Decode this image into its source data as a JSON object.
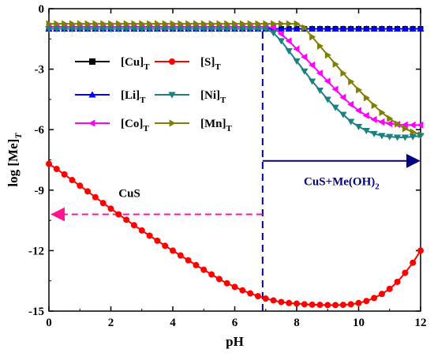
{
  "chart_data": {
    "type": "line",
    "xlabel": "pH",
    "ylabel": "log [Me]",
    "ylabel_sub": "T",
    "xlim": [
      0,
      12
    ],
    "ylim": [
      -15,
      0
    ],
    "xticks": [
      "0",
      "2",
      "4",
      "6",
      "8",
      "10",
      "12"
    ],
    "yticks": [
      "0",
      "-3",
      "-6",
      "-9",
      "-12",
      "-15"
    ],
    "grid": false,
    "legend_position": "upper-left",
    "legend_columns": 2,
    "x": [
      0,
      0.25,
      0.5,
      0.75,
      1,
      1.25,
      1.5,
      1.75,
      2,
      2.25,
      2.5,
      2.75,
      3,
      3.25,
      3.5,
      3.75,
      4,
      4.25,
      4.5,
      4.75,
      5,
      5.25,
      5.5,
      5.75,
      6,
      6.25,
      6.5,
      6.75,
      7,
      7.25,
      7.5,
      7.75,
      8,
      8.25,
      8.5,
      8.75,
      9,
      9.25,
      9.5,
      9.75,
      10,
      10.25,
      10.5,
      10.75,
      11,
      11.25,
      11.5,
      11.75,
      12
    ],
    "series": [
      {
        "name": "[Cu]",
        "sub": "T",
        "color": "#000000",
        "marker": "square",
        "values": [
          -1,
          -1,
          -1,
          -1,
          -1,
          -1,
          -1,
          -1,
          -1,
          -1,
          -1,
          -1,
          -1,
          -1,
          -1,
          -1,
          -1,
          -1,
          -1,
          -1,
          -1,
          -1,
          -1,
          -1,
          -1,
          -1,
          -1,
          -1,
          -1,
          -1,
          -1,
          -1,
          -1,
          -1,
          -1,
          -1,
          -1,
          -1,
          -1,
          -1,
          -1,
          -1,
          -1,
          -1,
          -1,
          -1,
          -1,
          -1,
          -1
        ]
      },
      {
        "name": "[S]",
        "sub": "T",
        "color": "#ff0000",
        "marker": "circle",
        "values": [
          -7.7,
          -7.95,
          -8.22,
          -8.5,
          -8.78,
          -9.06,
          -9.35,
          -9.64,
          -9.92,
          -10.2,
          -10.47,
          -10.74,
          -11.0,
          -11.26,
          -11.51,
          -11.76,
          -12.0,
          -12.24,
          -12.48,
          -12.72,
          -12.95,
          -13.18,
          -13.41,
          -13.62,
          -13.8,
          -13.97,
          -14.12,
          -14.26,
          -14.38,
          -14.47,
          -14.55,
          -14.6,
          -14.63,
          -14.66,
          -14.68,
          -14.69,
          -14.7,
          -14.7,
          -14.69,
          -14.66,
          -14.6,
          -14.5,
          -14.35,
          -14.15,
          -13.9,
          -13.55,
          -13.1,
          -12.6,
          -12.0
        ]
      },
      {
        "name": "[Li]",
        "sub": "T",
        "color": "#0000ff",
        "marker": "triangle-up",
        "values": [
          -1,
          -1,
          -1,
          -1,
          -1,
          -1,
          -1,
          -1,
          -1,
          -1,
          -1,
          -1,
          -1,
          -1,
          -1,
          -1,
          -1,
          -1,
          -1,
          -1,
          -1,
          -1,
          -1,
          -1,
          -1,
          -1,
          -1,
          -1,
          -1,
          -1,
          -1,
          -1,
          -1,
          -1,
          -1,
          -1,
          -1,
          -1,
          -1,
          -1,
          -1,
          -1,
          -1,
          -1,
          -1,
          -1,
          -1,
          -1,
          -1
        ]
      },
      {
        "name": "[Ni]",
        "sub": "T",
        "color": "#1a8080",
        "marker": "triangle-down",
        "values": [
          -1,
          -1,
          -1,
          -1,
          -1,
          -1,
          -1,
          -1,
          -1,
          -1,
          -1,
          -1,
          -1,
          -1,
          -1,
          -1,
          -1,
          -1,
          -1,
          -1,
          -1,
          -1,
          -1,
          -1,
          -1,
          -1,
          -1,
          -1,
          -1,
          -1.2,
          -1.6,
          -2.1,
          -2.6,
          -3.1,
          -3.6,
          -4.05,
          -4.5,
          -4.9,
          -5.25,
          -5.6,
          -5.85,
          -6.05,
          -6.2,
          -6.3,
          -6.35,
          -6.38,
          -6.38,
          -6.35,
          -6.3
        ]
      },
      {
        "name": "[Co]",
        "sub": "T",
        "color": "#ff00ff",
        "marker": "triangle-left",
        "values": [
          -0.9,
          -0.9,
          -0.9,
          -0.9,
          -0.9,
          -0.9,
          -0.9,
          -0.9,
          -0.9,
          -0.9,
          -0.9,
          -0.9,
          -0.9,
          -0.9,
          -0.9,
          -0.9,
          -0.9,
          -0.9,
          -0.9,
          -0.9,
          -0.9,
          -0.9,
          -0.9,
          -0.9,
          -0.9,
          -0.9,
          -0.9,
          -0.9,
          -0.9,
          -0.95,
          -1.25,
          -1.6,
          -2.0,
          -2.4,
          -2.8,
          -3.2,
          -3.6,
          -4.0,
          -4.4,
          -4.75,
          -5.05,
          -5.3,
          -5.5,
          -5.62,
          -5.7,
          -5.74,
          -5.76,
          -5.77,
          -5.77
        ]
      },
      {
        "name": "[Mn]",
        "sub": "T",
        "color": "#808000",
        "marker": "triangle-right",
        "values": [
          -0.75,
          -0.75,
          -0.75,
          -0.75,
          -0.75,
          -0.75,
          -0.75,
          -0.75,
          -0.75,
          -0.75,
          -0.75,
          -0.75,
          -0.75,
          -0.75,
          -0.75,
          -0.75,
          -0.75,
          -0.75,
          -0.75,
          -0.75,
          -0.75,
          -0.75,
          -0.75,
          -0.75,
          -0.75,
          -0.75,
          -0.75,
          -0.75,
          -0.75,
          -0.75,
          -0.75,
          -0.75,
          -0.75,
          -0.95,
          -1.4,
          -1.85,
          -2.3,
          -2.75,
          -3.2,
          -3.62,
          -4.03,
          -4.42,
          -4.8,
          -5.15,
          -5.45,
          -5.72,
          -5.95,
          -6.12,
          -6.25
        ]
      }
    ],
    "annotations": [
      {
        "name": "boundary",
        "x": 6.9,
        "y_range": [
          -15,
          -1.0
        ],
        "style": "dashed",
        "color": "#000080"
      },
      {
        "name": "cus-arrow",
        "text": "CuS",
        "color": "#ff1493",
        "x_from": 6.9,
        "x_to": 0.1,
        "y": -10.2,
        "text_x": 2.6,
        "text_y": -9.35
      },
      {
        "name": "cus-oh-arrow",
        "text": "CuS+Me(OH)",
        "sub": "2",
        "color": "#000080",
        "x_from": 6.9,
        "x_to": 11.95,
        "y": -7.55,
        "text_x": 9.45,
        "text_y": -8.75
      }
    ]
  }
}
